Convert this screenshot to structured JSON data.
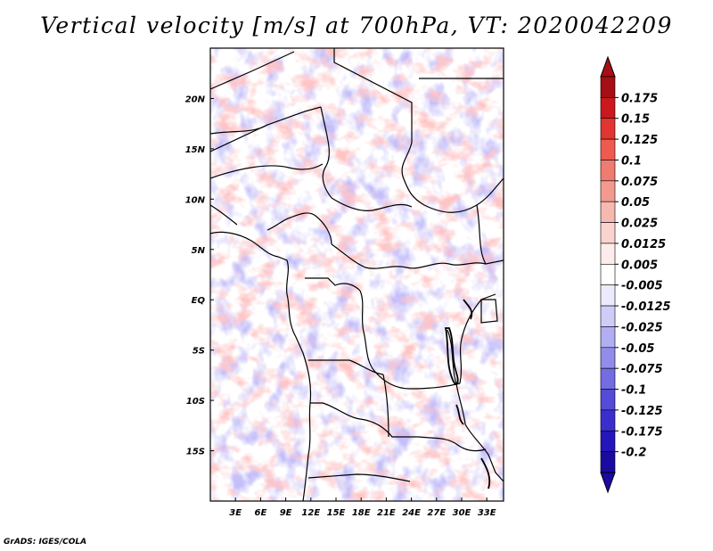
{
  "title": "Vertical velocity [m/s] at 700hPa, VT: 2020042209",
  "credit": "GrADS: IGES/COLA",
  "map": {
    "lon_range": [
      0,
      35
    ],
    "lat_range": [
      -20,
      25
    ],
    "lon_ticks": [
      "3E",
      "6E",
      "9E",
      "12E",
      "15E",
      "18E",
      "21E",
      "24E",
      "27E",
      "30E",
      "33E"
    ],
    "lat_ticks": [
      "20N",
      "15N",
      "10N",
      "5N",
      "EQ",
      "5S",
      "10S",
      "15S"
    ]
  },
  "colorbar": {
    "labels": [
      "0.175",
      "0.15",
      "0.125",
      "0.1",
      "0.075",
      "0.05",
      "0.025",
      "0.0125",
      "0.005",
      "-0.005",
      "-0.0125",
      "-0.025",
      "-0.05",
      "-0.075",
      "-0.1",
      "-0.125",
      "-0.175",
      "-0.2"
    ],
    "colors": [
      "#a50f15",
      "#cb181d",
      "#e03530",
      "#ef5a4f",
      "#f07b70",
      "#f29a90",
      "#f7b8b2",
      "#fad3cf",
      "#fdeceb",
      "#ffffff",
      "#ecebfd",
      "#cfcdf8",
      "#b2aef2",
      "#928ceb",
      "#736ce2",
      "#544bd9",
      "#3a2fcd",
      "#2416b8",
      "#1a0aa0"
    ],
    "tip_top_color": "#a50f15",
    "tip_bottom_color": "#1a0aa0"
  }
}
